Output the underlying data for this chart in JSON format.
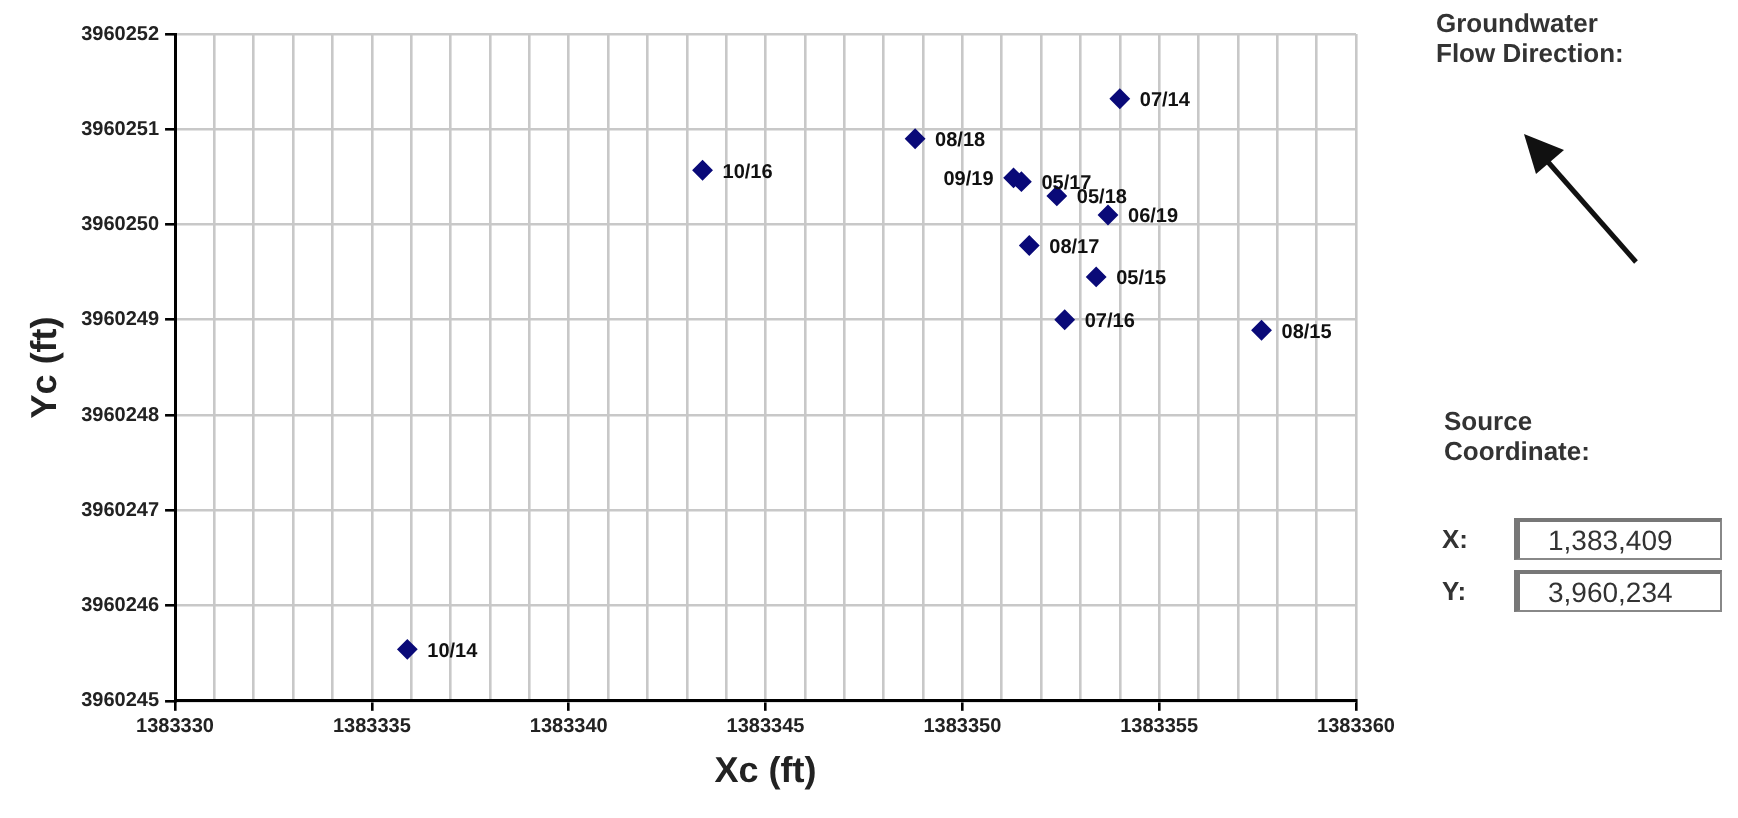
{
  "chart_data": {
    "type": "scatter",
    "xlabel": "Xc (ft)",
    "ylabel": "Yc (ft)",
    "x": [
      1383354.0,
      1383335.9,
      1383353.4,
      1383357.6,
      1383352.6,
      1383343.4,
      1383351.5,
      1383351.7,
      1383352.4,
      1383348.8,
      1383353.7,
      1383351.3
    ],
    "series": [
      {
        "color": "#0a0a78",
        "values": [
          3960251.32,
          3960245.54,
          3960249.45,
          3960248.89,
          3960249.0,
          3960250.57,
          3960250.45,
          3960249.78,
          3960250.3,
          3960250.9,
          3960250.1,
          3960250.49
        ]
      }
    ],
    "marker": "diamond",
    "grid": true,
    "legend": false,
    "xlim": [
      1383330,
      1383360
    ],
    "xticks": [
      1383330,
      {
        "value": 1383331,
        "label": null
      },
      {
        "value": 1383332,
        "label": null
      },
      {
        "value": 1383333,
        "label": null
      },
      {
        "value": 1383334,
        "label": null
      },
      1383335,
      {
        "value": 1383336,
        "label": null
      },
      {
        "value": 1383337,
        "label": null
      },
      {
        "value": 1383338,
        "label": null
      },
      {
        "value": 1383339,
        "label": null
      },
      1383340,
      {
        "value": 1383341,
        "label": null
      },
      {
        "value": 1383342,
        "label": null
      },
      {
        "value": 1383343,
        "label": null
      },
      {
        "value": 1383344,
        "label": null
      },
      1383345,
      {
        "value": 1383346,
        "label": null
      },
      {
        "value": 1383347,
        "label": null
      },
      {
        "value": 1383348,
        "label": null
      },
      {
        "value": 1383349,
        "label": null
      },
      1383350,
      {
        "value": 1383351,
        "label": null
      },
      {
        "value": 1383352,
        "label": null
      },
      {
        "value": 1383353,
        "label": null
      },
      {
        "value": 1383354,
        "label": null
      },
      1383355,
      {
        "value": 1383356,
        "label": null
      },
      {
        "value": 1383357,
        "label": null
      },
      {
        "value": 1383358,
        "label": null
      },
      {
        "value": 1383359,
        "label": null
      },
      1383360
    ],
    "ylim": [
      3960245,
      3960252
    ],
    "yticks": [
      3960245,
      3960246,
      3960247,
      3960248,
      3960249,
      3960250,
      3960251,
      3960252
    ],
    "annotations": [
      {
        "text": "07/14",
        "x": 1383354.0,
        "y": 3960251.32
      },
      {
        "text": "10/14",
        "x": 1383335.9,
        "y": 3960245.54
      },
      {
        "text": "05/15",
        "x": 1383353.4,
        "y": 3960249.45
      },
      {
        "text": "08/15",
        "x": 1383357.6,
        "y": 3960248.89
      },
      {
        "text": "07/16",
        "x": 1383352.6,
        "y": 3960249.0
      },
      {
        "text": "10/16",
        "x": 1383343.4,
        "y": 3960250.57
      },
      {
        "text": "05/17",
        "x": 1383351.5,
        "y": 3960250.45
      },
      {
        "text": "08/17",
        "x": 1383351.7,
        "y": 3960249.78
      },
      {
        "text": "05/18",
        "x": 1383352.4,
        "y": 3960250.3
      },
      {
        "text": "08/18",
        "x": 1383348.8,
        "y": 3960250.9
      },
      {
        "text": "06/19",
        "x": 1383353.7,
        "y": 3960250.1
      },
      {
        "text": "09/19",
        "x": 1383351.3,
        "y": 3960250.49
      },
      "Groundwater Flow Direction:",
      "Source Coordinate:",
      "X:",
      "1,383,409",
      "Y:",
      "3,960,234"
    ]
  }
}
